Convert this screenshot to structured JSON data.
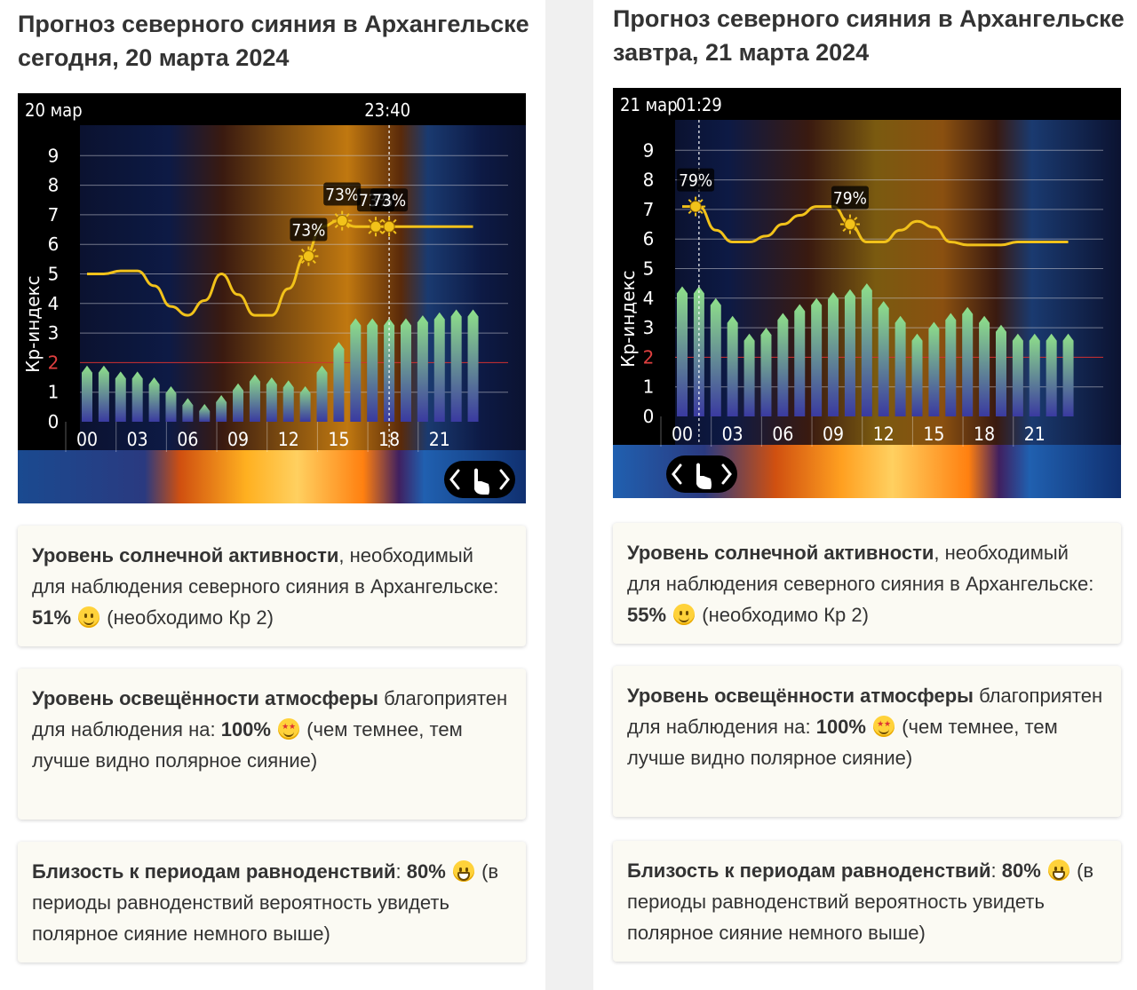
{
  "left": {
    "title_line1": "Прогноз северного сияния в Архангельске",
    "title_line2": "сегодня, 20 марта 2024",
    "chart_header_date": "20 мар",
    "chart_header_time": "23:40",
    "card1": {
      "bold": "Уровень солнечной активности",
      "text1": ", необходимый для наблюдения северного сияния в Архангельске: ",
      "value": "51%",
      "text2": " (необходимо Кр 2)",
      "emoji": "slightly-smiling-face-icon"
    },
    "card2": {
      "bold": "Уровень освещённости атмосферы",
      "text1": " благоприятен для наблюдения на: ",
      "value": "100%",
      "text2": " (чем темнее, тем лучше видно полярное сияние)",
      "emoji": "star-struck-face-icon"
    },
    "card3": {
      "bold": "Близость к периодам равноденствий",
      "text1": ": ",
      "value": "80%",
      "text2": " (в периоды равноденствий вероятность увидеть полярное сияние немного выше)",
      "emoji": "grinning-face-icon"
    }
  },
  "right": {
    "title_line1": "Прогноз северного сияния в Архангельске",
    "title_line2": "завтра, 21 марта 2024",
    "chart_header_date": "21 мар",
    "chart_header_time": "01:29",
    "card1": {
      "bold": "Уровень солнечной активности",
      "text1": ", необходимый для наблюдения северного сияния в Архангельске: ",
      "value": "55%",
      "text2": " (необходимо Кр 2)",
      "emoji": "slightly-smiling-face-icon"
    },
    "card2": {
      "bold": "Уровень освещённости атмосферы",
      "text1": " благоприятен для наблюдения на: ",
      "value": "100%",
      "text2": " (чем темнее, тем лучше видно полярное сияние)",
      "emoji": "star-struck-face-icon"
    },
    "card3": {
      "bold": "Близость к периодам равноденствий",
      "text1": ": ",
      "value": "80%",
      "text2": " (в периоды равноденствий вероятность увидеть полярное сияние немного выше)",
      "emoji": "grinning-face-icon"
    }
  },
  "colors": {
    "curve": "#f2c21a",
    "threshold": "#d23030",
    "bar_top": "#8fe08a",
    "bar_bottom": "#3a3aa0"
  },
  "chart_data": [
    {
      "type": "bar",
      "ylabel": "Кр-индекс",
      "ylim": [
        0,
        9
      ],
      "yticks": [
        "0",
        "1",
        "2",
        "3",
        "4",
        "5",
        "6",
        "7",
        "8",
        "9"
      ],
      "threshold_kp": 2,
      "x_ticks": [
        "00",
        "03",
        "06",
        "09",
        "12",
        "15",
        "18",
        "21"
      ],
      "x_hours": [
        0,
        1,
        2,
        3,
        4,
        5,
        6,
        7,
        8,
        9,
        10,
        11,
        12,
        13,
        14,
        15,
        16,
        17,
        18,
        19,
        20,
        21,
        22,
        23
      ],
      "kp_values": [
        1.9,
        1.9,
        1.7,
        1.7,
        1.5,
        1.2,
        0.8,
        0.6,
        0.9,
        1.3,
        1.6,
        1.5,
        1.4,
        1.2,
        1.9,
        2.7,
        3.5,
        3.5,
        3.5,
        3.5,
        3.6,
        3.7,
        3.8,
        3.8
      ],
      "curve_hours": [
        0,
        1,
        2,
        3,
        4,
        5,
        6,
        7,
        8,
        9,
        10,
        11,
        12,
        13,
        14,
        15,
        16,
        17,
        18,
        19,
        20,
        21,
        22,
        23
      ],
      "curve_kp": [
        5,
        5,
        5.1,
        5.1,
        4.6,
        3.9,
        3.6,
        4.1,
        5,
        4.3,
        3.6,
        3.6,
        4.5,
        5.6,
        6.6,
        6.8,
        6.6,
        6.6,
        6.6,
        6.6,
        6.6,
        6.6,
        6.6,
        6.6
      ],
      "markers": [
        {
          "hour": 13.2,
          "label": "73%"
        },
        {
          "hour": 15.2,
          "label": "73%"
        },
        {
          "hour": 17.2,
          "label": "73%"
        },
        {
          "hour": 18.0,
          "label": "73%"
        }
      ],
      "current_time_hour": 18.0
    },
    {
      "type": "bar",
      "ylabel": "Кр-индекс",
      "ylim": [
        0,
        9
      ],
      "yticks": [
        "0",
        "1",
        "2",
        "3",
        "4",
        "5",
        "6",
        "7",
        "8",
        "9"
      ],
      "threshold_kp": 2,
      "x_ticks": [
        "00",
        "03",
        "06",
        "09",
        "12",
        "15",
        "18",
        "21"
      ],
      "x_hours": [
        0,
        1,
        2,
        3,
        4,
        5,
        6,
        7,
        8,
        9,
        10,
        11,
        12,
        13,
        14,
        15,
        16,
        17,
        18,
        19,
        20,
        21,
        22,
        23
      ],
      "kp_values": [
        4.4,
        4.4,
        4,
        3.4,
        2.8,
        3,
        3.5,
        3.8,
        4,
        4.2,
        4.3,
        4.5,
        3.9,
        3.4,
        2.8,
        3.2,
        3.5,
        3.7,
        3.4,
        3.1,
        2.8,
        2.8,
        2.8,
        2.8
      ],
      "curve_hours": [
        0,
        1,
        2,
        3,
        4,
        5,
        6,
        7,
        8,
        9,
        10,
        11,
        12,
        13,
        14,
        15,
        16,
        17,
        18,
        19,
        20,
        21,
        22,
        23
      ],
      "curve_kp": [
        7.1,
        7.1,
        6.3,
        5.9,
        5.9,
        6.1,
        6.5,
        6.8,
        7.1,
        7.1,
        6.5,
        5.9,
        5.9,
        6.3,
        6.6,
        6.4,
        5.9,
        5.8,
        5.8,
        5.8,
        5.9,
        5.9,
        5.9,
        5.9
      ],
      "markers": [
        {
          "hour": 0.8,
          "label": "79%"
        },
        {
          "hour": 10.0,
          "label": "79%"
        }
      ],
      "current_time_hour": 1.0
    }
  ]
}
